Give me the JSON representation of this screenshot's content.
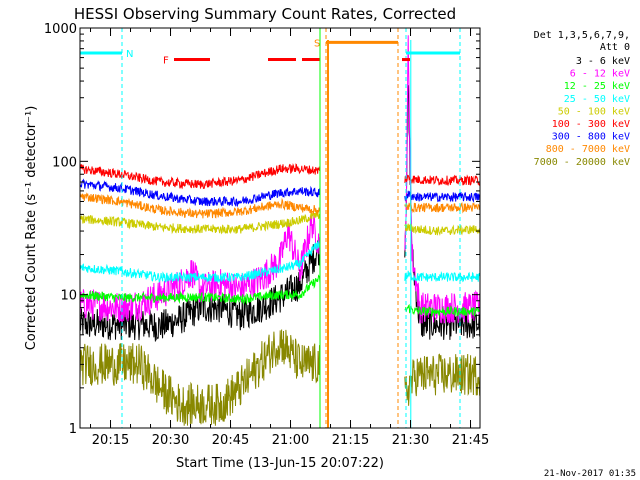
{
  "chart_data": {
    "type": "line",
    "title": "HESSI Observing Summary Count Rates, Corrected",
    "xlabel": "Start Time (13-Jun-15 20:07:22)",
    "ylabel": "Corrected Count Rate (s⁻¹ detector⁻¹)",
    "x_unit": "minutes after 20:07:22",
    "xlim": [
      0,
      100
    ],
    "ylim": [
      1,
      1000
    ],
    "y_scale": "log",
    "x_ticks": [
      {
        "x": 7.63,
        "label": "20:15"
      },
      {
        "x": 22.63,
        "label": "20:30"
      },
      {
        "x": 37.63,
        "label": "20:45"
      },
      {
        "x": 52.63,
        "label": "21:00"
      },
      {
        "x": 67.63,
        "label": "21:15"
      },
      {
        "x": 82.63,
        "label": "21:30"
      },
      {
        "x": 97.63,
        "label": "21:45"
      }
    ],
    "y_ticks": [
      {
        "y": 1,
        "label": "1"
      },
      {
        "y": 10,
        "label": "10"
      },
      {
        "y": 100,
        "label": "100"
      },
      {
        "y": 1000,
        "label": "1000"
      }
    ],
    "legend_title": [
      "Det 1,3,5,6,7,9,",
      "Att 0"
    ],
    "legend_position": "right",
    "footer_date": "21-Nov-2017 01:35",
    "gap": {
      "x_start": 60.0,
      "x_end": 81.2
    },
    "series": [
      {
        "name": "3 - 6 keV",
        "color": "#000000",
        "x": [
          0,
          5,
          10,
          15,
          20,
          25,
          30,
          35,
          40,
          45,
          50,
          55,
          59.5,
          80.5,
          81.5,
          82,
          83,
          85,
          90,
          95,
          100
        ],
        "y": [
          6,
          6,
          6,
          6,
          5.8,
          6.5,
          8,
          8,
          7,
          8,
          9.5,
          12,
          22,
          8,
          40,
          400,
          20,
          6,
          6,
          6,
          6
        ]
      },
      {
        "name": "6 - 12 keV",
        "color": "#ff00ff",
        "x": [
          0,
          5,
          10,
          15,
          20,
          25,
          28,
          30,
          35,
          40,
          45,
          50,
          52,
          55,
          58,
          59.5,
          80.5,
          81.5,
          82,
          83,
          85,
          90,
          95,
          100
        ],
        "y": [
          8.5,
          8.4,
          8,
          8.5,
          10,
          12,
          15,
          11,
          12,
          11,
          13,
          18,
          30,
          15,
          35,
          25,
          8,
          30,
          800,
          20,
          8,
          8,
          8,
          8
        ]
      },
      {
        "name": "12 - 25 keV",
        "color": "#00ff00",
        "x": [
          0,
          10,
          20,
          30,
          40,
          50,
          55,
          59.5,
          80.5,
          82,
          84,
          90,
          100
        ],
        "y": [
          10,
          9.5,
          9.5,
          9.6,
          9.3,
          10,
          10,
          13,
          7,
          8,
          7.5,
          7.5,
          7.5
        ]
      },
      {
        "name": "25 - 50 keV",
        "color": "#00ffff",
        "x": [
          0,
          10,
          20,
          30,
          40,
          50,
          55,
          59.5,
          80.5,
          82,
          84,
          90,
          100
        ],
        "y": [
          16,
          15,
          13.5,
          13.5,
          13.5,
          15.5,
          17,
          24,
          13,
          14,
          13.5,
          13.5,
          13.5
        ]
      },
      {
        "name": "50 - 100 keV",
        "color": "#cccc00",
        "x": [
          0,
          10,
          20,
          30,
          40,
          50,
          55,
          59.5,
          80.5,
          82,
          84,
          90,
          100
        ],
        "y": [
          37,
          35,
          32,
          31,
          31,
          34,
          36,
          40,
          30,
          32,
          31,
          30,
          31
        ]
      },
      {
        "name": "100 - 300 keV",
        "color": "#ff0000",
        "x": [
          0,
          10,
          20,
          30,
          40,
          50,
          55,
          59.5,
          80.5,
          82,
          84,
          90,
          100
        ],
        "y": [
          88,
          80,
          70,
          67,
          72,
          88,
          88,
          85,
          72,
          75,
          73,
          72,
          72
        ]
      },
      {
        "name": "300 - 800 keV",
        "color": "#0000ff",
        "x": [
          0,
          10,
          20,
          30,
          40,
          50,
          55,
          59.5,
          80.5,
          82,
          84,
          90,
          100
        ],
        "y": [
          68,
          63,
          55,
          50,
          50,
          58,
          60,
          58,
          52,
          56,
          54,
          54,
          54
        ]
      },
      {
        "name": "800 - 7000 keV",
        "color": "#ff8800",
        "x": [
          0,
          10,
          20,
          30,
          40,
          50,
          55,
          59.5,
          80.5,
          82,
          84,
          90,
          100
        ],
        "y": [
          55,
          50,
          43,
          40,
          42,
          48,
          45,
          43,
          44,
          46,
          45,
          45,
          45
        ]
      },
      {
        "name": "7000 - 20000 keV",
        "color": "#888800",
        "x": [
          0,
          10,
          15,
          20,
          25,
          30,
          35,
          40,
          45,
          50,
          55,
          59.5,
          80.5,
          82,
          84,
          90,
          100
        ],
        "y": [
          3,
          3,
          3,
          2,
          1.5,
          1.5,
          1.5,
          2,
          3,
          4.5,
          3,
          3,
          1.5,
          2,
          2.5,
          2.5,
          2.5
        ]
      }
    ],
    "flags": [
      {
        "name": "N",
        "label": "N",
        "color": "#00ffff",
        "y_level": 650,
        "start": 0,
        "end": 10.5,
        "segments": [
          [
            0,
            10.5
          ],
          [
            81.5,
            95
          ]
        ],
        "start_markers": [
          10.5,
          81.5
        ],
        "end_markers": [
          95
        ]
      },
      {
        "name": "F",
        "label": "F",
        "color": "#ff0000",
        "y_level": 580,
        "segments": [
          [
            23.5,
            32.5
          ],
          [
            47,
            54
          ],
          [
            55.5,
            60
          ]
        ]
      },
      {
        "name": "S",
        "label": "S",
        "color": "#ff8800",
        "y_level": 780,
        "segments": [
          [
            61.5,
            79.5
          ]
        ],
        "start_markers": [
          61.5
        ],
        "end_markers": [
          79.5
        ]
      },
      {
        "name": "S-red",
        "label": "",
        "color": "#ff0000",
        "y_level": 580,
        "segments": [
          [
            80.5,
            82.5
          ]
        ]
      }
    ]
  }
}
